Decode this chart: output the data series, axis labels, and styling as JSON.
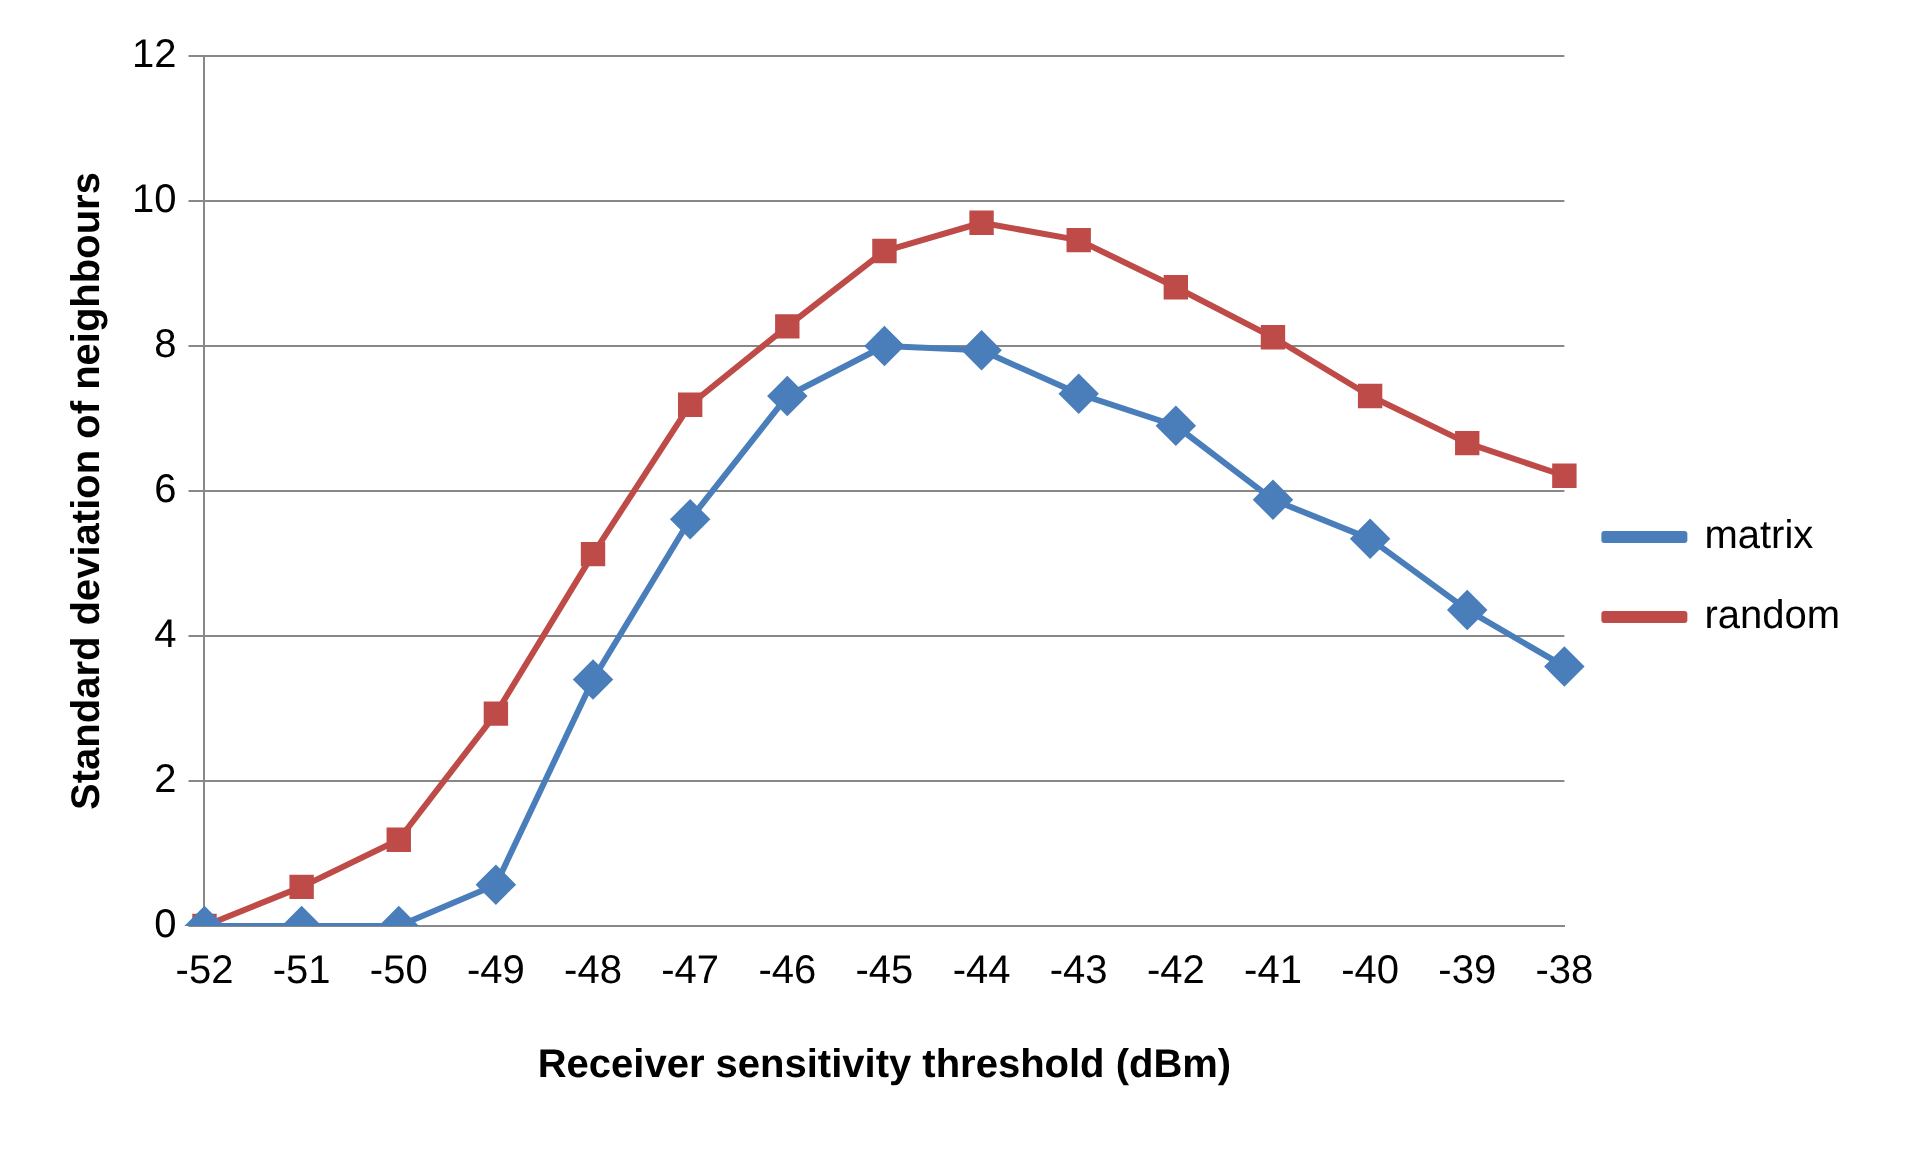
{
  "chart_data": {
    "type": "line",
    "xlabel": "Receiver sensitivity threshold (dBm)",
    "ylabel": "Standard deviation of neighbours",
    "categories": [
      "-52",
      "-51",
      "-50",
      "-49",
      "-48",
      "-47",
      "-46",
      "-45",
      "-44",
      "-43",
      "-42",
      "-41",
      "-40",
      "-39",
      "-38"
    ],
    "series": [
      {
        "name": "matrix",
        "color": "#4a7ebb",
        "marker": "diamond",
        "values": [
          0,
          0,
          0,
          0.57,
          3.4,
          5.61,
          7.31,
          8.0,
          7.94,
          7.34,
          6.9,
          5.88,
          5.34,
          4.36,
          3.58
        ]
      },
      {
        "name": "random",
        "color": "#be4b48",
        "marker": "square",
        "values": [
          0,
          0.54,
          1.19,
          2.93,
          5.13,
          7.19,
          8.27,
          9.31,
          9.7,
          9.46,
          8.81,
          8.12,
          7.31,
          6.66,
          6.21
        ]
      }
    ],
    "ylim": [
      0,
      12
    ],
    "yticks": [
      0,
      2,
      4,
      6,
      8,
      10,
      12
    ],
    "grid": "y",
    "legend": "right"
  }
}
